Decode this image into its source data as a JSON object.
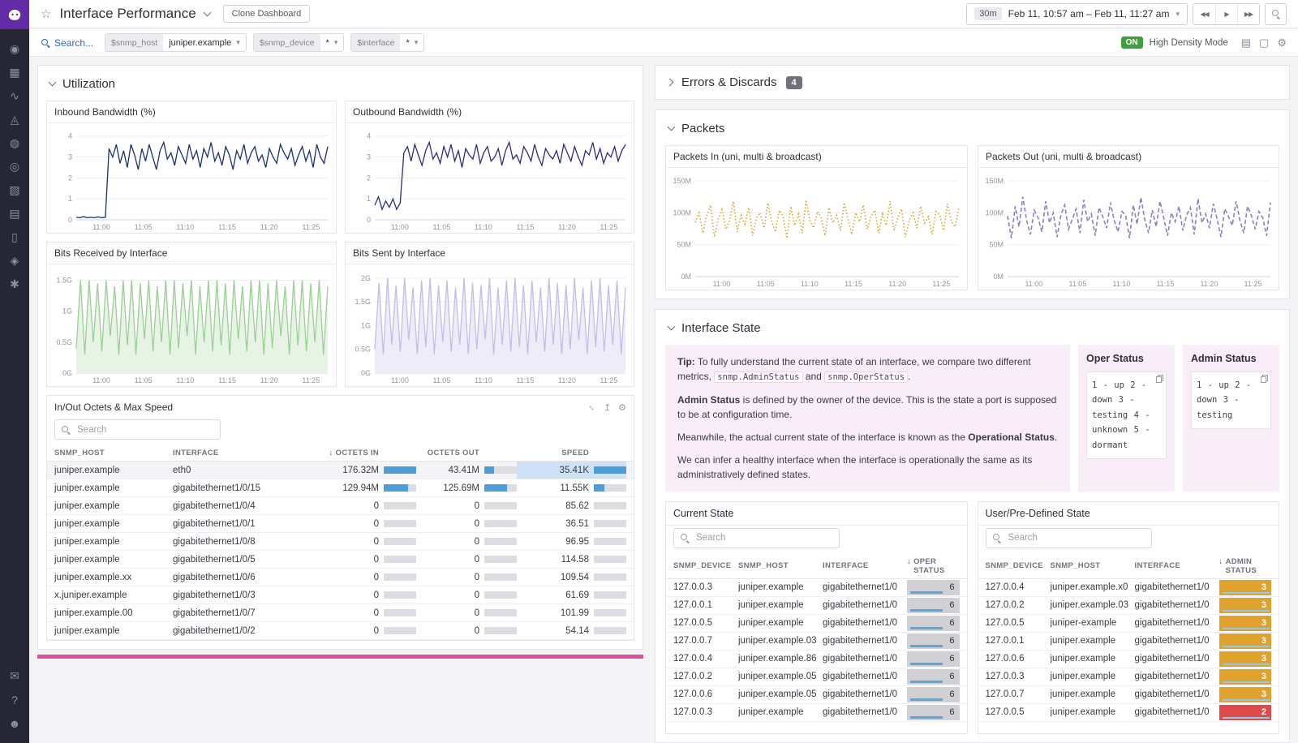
{
  "header": {
    "star": "☆",
    "title": "Interface Performance",
    "clone_label": "Clone Dashboard",
    "time": {
      "range_badge": "30m",
      "range_text": "Feb 11, 10:57 am – Feb 11, 11:27 am",
      "nav_back": "◀◀",
      "nav_play": "▶",
      "nav_forward": "▶▶"
    }
  },
  "toolbar": {
    "search_label": "Search...",
    "variables": [
      {
        "label": "$snmp_host",
        "value": "juniper.example"
      },
      {
        "label": "$snmp_device",
        "value": "*"
      },
      {
        "label": "$interface",
        "value": "*"
      }
    ],
    "density": {
      "state": "ON",
      "label": "High Density Mode"
    },
    "icons": [
      {
        "name": "widgets-list-icon",
        "g": "▤"
      },
      {
        "name": "tv-screen-icon",
        "g": "▢"
      },
      {
        "name": "settings-gear-icon",
        "g": "⚙"
      }
    ]
  },
  "sidebar": {
    "icons": [
      {
        "name": "watchdog-icon",
        "g": "◉"
      },
      {
        "name": "dashboards-icon",
        "g": "▦"
      },
      {
        "name": "metrics-icon",
        "g": "∿"
      },
      {
        "name": "apm-icon",
        "g": "◬"
      },
      {
        "name": "monitors-icon",
        "g": "◍"
      },
      {
        "name": "synthetics-icon",
        "g": "◎"
      },
      {
        "name": "infrastructure-icon",
        "g": "▧"
      },
      {
        "name": "logs-icon",
        "g": "▤"
      },
      {
        "name": "notebooks-icon",
        "g": "▯"
      },
      {
        "name": "security-icon",
        "g": "◈"
      },
      {
        "name": "settings-icon",
        "g": "✱"
      }
    ],
    "bottom_icons": [
      {
        "name": "chat-icon",
        "g": "✉"
      },
      {
        "name": "help-icon",
        "g": "?"
      },
      {
        "name": "users-icon",
        "g": "☻"
      }
    ]
  },
  "sections": {
    "utilization": {
      "title": "Utilization"
    },
    "errors": {
      "title": "Errors & Discards",
      "badge": "4"
    },
    "packets": {
      "title": "Packets"
    },
    "interface_state": {
      "title": "Interface State"
    }
  },
  "charts": {
    "inbound": {
      "title": "Inbound Bandwidth (%)",
      "type": "line",
      "color": "#1d3070",
      "ymax": 4.3,
      "yticks": [
        {
          "v": 0,
          "l": "0"
        },
        {
          "v": 1,
          "l": "1"
        },
        {
          "v": 2,
          "l": "2"
        },
        {
          "v": 3,
          "l": "3"
        },
        {
          "v": 4,
          "l": "4"
        }
      ],
      "xticks": [
        "11:00",
        "11:05",
        "11:10",
        "11:15",
        "11:20",
        "11:25"
      ],
      "values": [
        0.12,
        0.1,
        0.15,
        0.1,
        0.12,
        0.1,
        0.14,
        0.1,
        0.12,
        3.4,
        3.0,
        3.6,
        2.7,
        3.3,
        2.5,
        3.6,
        3.1,
        2.4,
        3.4,
        2.8,
        3.6,
        3.0,
        2.4,
        3.3,
        3.7,
        2.9,
        3.2,
        2.6,
        3.5,
        3.1,
        2.7,
        3.6,
        2.9,
        3.3,
        2.5,
        3.4,
        3.0,
        3.7,
        2.8,
        3.2,
        2.6,
        3.5,
        3.1,
        2.4,
        3.3,
        2.9,
        3.6,
        2.7,
        3.2,
        3.5,
        2.8,
        3.1,
        2.5,
        3.4,
        3.0,
        2.7,
        3.6,
        3.2,
        2.9,
        3.4,
        2.6,
        3.1,
        3.5,
        2.8,
        3.3,
        2.5,
        3.6,
        3.0,
        2.7,
        3.5
      ]
    },
    "outbound": {
      "title": "Outbound Bandwidth (%)",
      "type": "line",
      "color": "#2e2c7e",
      "ymax": 4.3,
      "yticks": [
        {
          "v": 0,
          "l": "0"
        },
        {
          "v": 1,
          "l": "1"
        },
        {
          "v": 2,
          "l": "2"
        },
        {
          "v": 3,
          "l": "3"
        },
        {
          "v": 4,
          "l": "4"
        }
      ],
      "xticks": [
        "11:00",
        "11:05",
        "11:10",
        "11:15",
        "11:20",
        "11:25"
      ],
      "values": [
        0.7,
        1.1,
        0.5,
        0.9,
        0.6,
        1.0,
        0.5,
        0.8,
        3.2,
        3.5,
        2.8,
        3.6,
        3.1,
        2.6,
        3.3,
        3.7,
        2.9,
        3.2,
        2.7,
        3.5,
        3.0,
        3.6,
        2.8,
        3.3,
        2.5,
        3.4,
        3.1,
        2.9,
        3.6,
        2.7,
        3.2,
        3.5,
        2.8,
        3.0,
        3.4,
        2.6,
        3.3,
        3.7,
        2.9,
        3.1,
        2.7,
        3.5,
        3.2,
        2.8,
        3.6,
        3.0,
        2.6,
        3.4,
        3.1,
        2.9,
        3.3,
        2.7,
        3.6,
        3.2,
        2.8,
        3.5,
        3.0,
        2.6,
        3.3,
        3.1,
        3.7,
        2.9,
        3.4,
        2.7,
        3.2,
        3.0,
        3.5,
        2.8,
        3.3,
        3.6
      ]
    },
    "bits_received": {
      "title": "Bits Received by Interface",
      "type": "area",
      "color": "#9ccf96",
      "fill": "#e7f4e5",
      "ymax": 1.65,
      "yticks": [
        {
          "v": 0,
          "l": "0G"
        },
        {
          "v": 0.5,
          "l": "0.5G"
        },
        {
          "v": 1,
          "l": "1G"
        },
        {
          "v": 1.5,
          "l": "1.5G"
        }
      ],
      "xticks": [
        "11:00",
        "11:05",
        "11:10",
        "11:15",
        "11:20",
        "11:25"
      ],
      "values": [
        0.4,
        1.5,
        0.3,
        1.5,
        0.5,
        1.45,
        0.35,
        1.5,
        0.6,
        1.4,
        0.3,
        1.5,
        0.45,
        1.5,
        0.3,
        1.45,
        0.55,
        1.5,
        0.35,
        1.4,
        0.5,
        1.5,
        0.3,
        1.5,
        0.4,
        1.45,
        0.6,
        1.5,
        0.3,
        1.4,
        0.5,
        1.5,
        0.35,
        1.5,
        0.45,
        1.45,
        0.3,
        1.5,
        0.55,
        1.4,
        0.35,
        1.5,
        0.5,
        1.5,
        0.3,
        1.45,
        0.4,
        1.5,
        0.6,
        1.4,
        0.3,
        1.5,
        0.45,
        1.5,
        0.35,
        1.45,
        0.5,
        1.5,
        0.3,
        1.4
      ]
    },
    "bits_sent": {
      "title": "Bits Sent by Interface",
      "type": "area",
      "color": "#c4bde7",
      "fill": "#eeecf9",
      "ymax": 2.15,
      "yticks": [
        {
          "v": 0,
          "l": "0G"
        },
        {
          "v": 0.5,
          "l": "0.5G"
        },
        {
          "v": 1,
          "l": "1G"
        },
        {
          "v": 1.5,
          "l": "1.5G"
        },
        {
          "v": 2,
          "l": "2G"
        }
      ],
      "xticks": [
        "11:00",
        "11:05",
        "11:10",
        "11:15",
        "11:20",
        "11:25"
      ],
      "values": [
        0.5,
        1.9,
        0.4,
        2.0,
        0.6,
        1.85,
        0.45,
        2.0,
        0.7,
        1.8,
        0.4,
        1.95,
        0.55,
        2.0,
        0.4,
        1.85,
        0.65,
        1.95,
        0.45,
        1.8,
        0.6,
        2.0,
        0.4,
        1.9,
        0.5,
        1.85,
        0.7,
        2.0,
        0.4,
        1.8,
        0.6,
        1.95,
        0.45,
        2.0,
        0.55,
        1.85,
        0.4,
        1.95,
        0.65,
        1.8,
        0.45,
        2.0,
        0.6,
        1.9,
        0.4,
        1.85,
        0.5,
        2.0,
        0.7,
        1.8,
        0.4,
        1.95,
        0.55,
        2.0,
        0.45,
        1.85,
        0.6,
        1.95,
        0.4,
        1.8
      ]
    },
    "packets_in": {
      "title": "Packets In (uni, multi & broadcast)",
      "type": "dotted",
      "color": "#d9a827",
      "ymax": 160,
      "yticks": [
        {
          "v": 0,
          "l": "0M"
        },
        {
          "v": 50,
          "l": "50M"
        },
        {
          "v": 100,
          "l": "100M"
        },
        {
          "v": 150,
          "l": "150M"
        }
      ],
      "xticks": [
        "11:00",
        "11:05",
        "11:10",
        "11:15",
        "11:20",
        "11:25"
      ],
      "values": [
        85,
        100,
        68,
        95,
        112,
        62,
        90,
        105,
        74,
        88,
        118,
        70,
        96,
        82,
        108,
        64,
        92,
        100,
        76,
        115,
        86,
        70,
        104,
        94,
        60,
        110,
        80,
        98,
        68,
        120,
        88,
        76,
        102,
        92,
        64,
        108,
        84,
        96,
        72,
        116,
        90,
        66,
        100,
        86,
        112,
        74,
        94,
        104,
        68,
        98,
        80,
        118,
        72,
        92,
        106,
        62,
        88,
        100,
        76,
        110,
        84,
        94,
        66,
        102,
        96,
        72,
        114,
        86,
        78,
        108
      ]
    },
    "packets_out": {
      "title": "Packets Out (uni, multi & broadcast)",
      "type": "dashed",
      "color": "#8c7fca",
      "ymax": 160,
      "yticks": [
        {
          "v": 0,
          "l": "0M"
        },
        {
          "v": 50,
          "l": "50M"
        },
        {
          "v": 100,
          "l": "100M"
        },
        {
          "v": 150,
          "l": "150M"
        }
      ],
      "xticks": [
        "11:00",
        "11:05",
        "11:10",
        "11:15",
        "11:20",
        "11:25"
      ],
      "values": [
        95,
        60,
        110,
        78,
        125,
        88,
        66,
        104,
        92,
        70,
        118,
        84,
        100,
        62,
        96,
        112,
        74,
        90,
        106,
        68,
        120,
        86,
        98,
        64,
        108,
        94,
        76,
        116,
        88,
        70,
        102,
        96,
        60,
        112,
        82,
        124,
        90,
        68,
        104,
        78,
        118,
        92,
        64,
        100,
        86,
        110,
        72,
        96,
        108,
        66,
        122,
        84,
        98,
        76,
        114,
        90,
        62,
        106,
        94,
        80,
        118,
        88,
        68,
        110,
        96,
        74,
        102,
        92,
        64,
        116
      ]
    }
  },
  "octets_widget": {
    "title": "In/Out Octets & Max Speed",
    "search_placeholder": "Search",
    "columns": [
      "SNMP_HOST",
      "INTERFACE",
      "OCTETS IN",
      "OCTETS OUT",
      "SPEED"
    ],
    "icons": [
      {
        "name": "expand-icon",
        "g": "↔",
        "cls": "rot45"
      },
      {
        "name": "export-icon",
        "g": "↥"
      },
      {
        "name": "gear-icon",
        "g": "⚙"
      }
    ],
    "rows": [
      {
        "host": "juniper.example",
        "iface": "eth0",
        "in": "176.32M",
        "in_f": 1,
        "out": "43.41M",
        "out_f": 0.3,
        "speed": "35.41K",
        "speed_f": 1,
        "highlight": true
      },
      {
        "host": "juniper.example",
        "iface": "gigabitethernet1/0/15",
        "in": "129.94M",
        "in_f": 0.74,
        "out": "125.69M",
        "out_f": 0.71,
        "speed": "11.55K",
        "speed_f": 0.33
      },
      {
        "host": "juniper.example",
        "iface": "gigabitethernet1/0/4",
        "in": "0",
        "in_f": 0,
        "out": "0",
        "out_f": 0,
        "speed": "85.62",
        "speed_f": 0
      },
      {
        "host": "juniper.example",
        "iface": "gigabitethernet1/0/1",
        "in": "0",
        "in_f": 0,
        "out": "0",
        "out_f": 0,
        "speed": "36.51",
        "speed_f": 0
      },
      {
        "host": "juniper.example",
        "iface": "gigabitethernet1/0/8",
        "in": "0",
        "in_f": 0,
        "out": "0",
        "out_f": 0,
        "speed": "96.95",
        "speed_f": 0
      },
      {
        "host": "juniper.example",
        "iface": "gigabitethernet1/0/5",
        "in": "0",
        "in_f": 0,
        "out": "0",
        "out_f": 0,
        "speed": "114.58",
        "speed_f": 0
      },
      {
        "host": "juniper.example.xx",
        "iface": "gigabitethernet1/0/6",
        "in": "0",
        "in_f": 0,
        "out": "0",
        "out_f": 0,
        "speed": "109.54",
        "speed_f": 0
      },
      {
        "host": "x.juniper.example",
        "iface": "gigabitethernet1/0/3",
        "in": "0",
        "in_f": 0,
        "out": "0",
        "out_f": 0,
        "speed": "61.69",
        "speed_f": 0
      },
      {
        "host": "juniper.example.00",
        "iface": "gigabitethernet1/0/7",
        "in": "0",
        "in_f": 0,
        "out": "0",
        "out_f": 0,
        "speed": "101.99",
        "speed_f": 0
      },
      {
        "host": "juniper.example",
        "iface": "gigabitethernet1/0/2",
        "in": "0",
        "in_f": 0,
        "out": "0",
        "out_f": 0,
        "speed": "54.14",
        "speed_f": 0
      }
    ]
  },
  "interface_state": {
    "tip_paragraphs": [
      [
        {
          "b": "Tip:"
        },
        {
          "t": " To fully understand the current state of an interface, we compare two different metrics, "
        },
        {
          "c": "snmp.AdminStatus"
        },
        {
          "t": " and "
        },
        {
          "c": "snmp.OperStatus"
        },
        {
          "t": "."
        }
      ],
      [
        {
          "b": "Admin Status"
        },
        {
          "t": " is defined by the owner of the device. This is the state a port is supposed to be at configuration time."
        }
      ],
      [
        {
          "t": "Meanwhile, the actual current state of the interface is known as the "
        },
        {
          "b": "Operational Status"
        },
        {
          "t": "."
        }
      ],
      [
        {
          "t": "We can infer a healthy interface when the interface is operationally the same as its administratively defined states."
        }
      ]
    ],
    "oper_box": {
      "title": "Oper Status",
      "code": "1 - up 2 - down 3 - testing 4 - unknown 5 - dormant"
    },
    "admin_box": {
      "title": "Admin Status",
      "code": "1 - up 2 - down 3 - testing"
    },
    "current": {
      "title": "Current State",
      "search_placeholder": "Search",
      "columns": [
        "SNMP_DEVICE",
        "SNMP_HOST",
        "INTERFACE",
        "OPER STATUS"
      ],
      "rows": [
        {
          "device": "127.0.0.3",
          "host": "juniper.example",
          "iface": "gigabitethernet1/0",
          "value": "6"
        },
        {
          "device": "127.0.0.1",
          "host": "juniper.example",
          "iface": "gigabitethernet1/0",
          "value": "6"
        },
        {
          "device": "127.0.0.5",
          "host": "juniper.example",
          "iface": "gigabitethernet1/0",
          "value": "6"
        },
        {
          "device": "127.0.0.7",
          "host": "juniper.example.03",
          "iface": "gigabitethernet1/0",
          "value": "6"
        },
        {
          "device": "127.0.0.4",
          "host": "juniper.example.86",
          "iface": "gigabitethernet1/0",
          "value": "6"
        },
        {
          "device": "127.0.0.2",
          "host": "juniper.example.05",
          "iface": "gigabitethernet1/0",
          "value": "6"
        },
        {
          "device": "127.0.0.6",
          "host": "juniper.example.05",
          "iface": "gigabitethernet1/0",
          "value": "6"
        },
        {
          "device": "127.0.0.3",
          "host": "juniper.example",
          "iface": "gigabitethernet1/0",
          "value": "6"
        }
      ]
    },
    "predefined": {
      "title": "User/Pre-Defined State",
      "search_placeholder": "Search",
      "columns": [
        "SNMP_DEVICE",
        "SNMP_HOST",
        "INTERFACE",
        "ADMIN STATUS"
      ],
      "rows": [
        {
          "device": "127.0.0.4",
          "host": "juniper.example.x0",
          "iface": "gigabitethernet1/0",
          "value": "3",
          "level": "warn"
        },
        {
          "device": "127.0.0.2",
          "host": "juniper.example.03",
          "iface": "gigabitethernet1/0",
          "value": "3",
          "level": "warn"
        },
        {
          "device": "127.0.0.5",
          "host": "juniper-example",
          "iface": "gigabitethernet1/0",
          "value": "3",
          "level": "warn"
        },
        {
          "device": "127.0.0.1",
          "host": "juniper.example",
          "iface": "gigabitethernet1/0",
          "value": "3",
          "level": "warn"
        },
        {
          "device": "127.0.0.6",
          "host": "juniper.example",
          "iface": "gigabitethernet1/0",
          "value": "3",
          "level": "warn"
        },
        {
          "device": "127.0.0.3",
          "host": "juniper.example",
          "iface": "gigabitethernet1/0",
          "value": "3",
          "level": "warn"
        },
        {
          "device": "127.0.0.7",
          "host": "juniper.example",
          "iface": "gigabitethernet1/0",
          "value": "3",
          "level": "warn"
        },
        {
          "device": "127.0.0.5",
          "host": "juniper.example",
          "iface": "gigabitethernet1/0",
          "value": "2",
          "level": "error"
        }
      ]
    }
  }
}
